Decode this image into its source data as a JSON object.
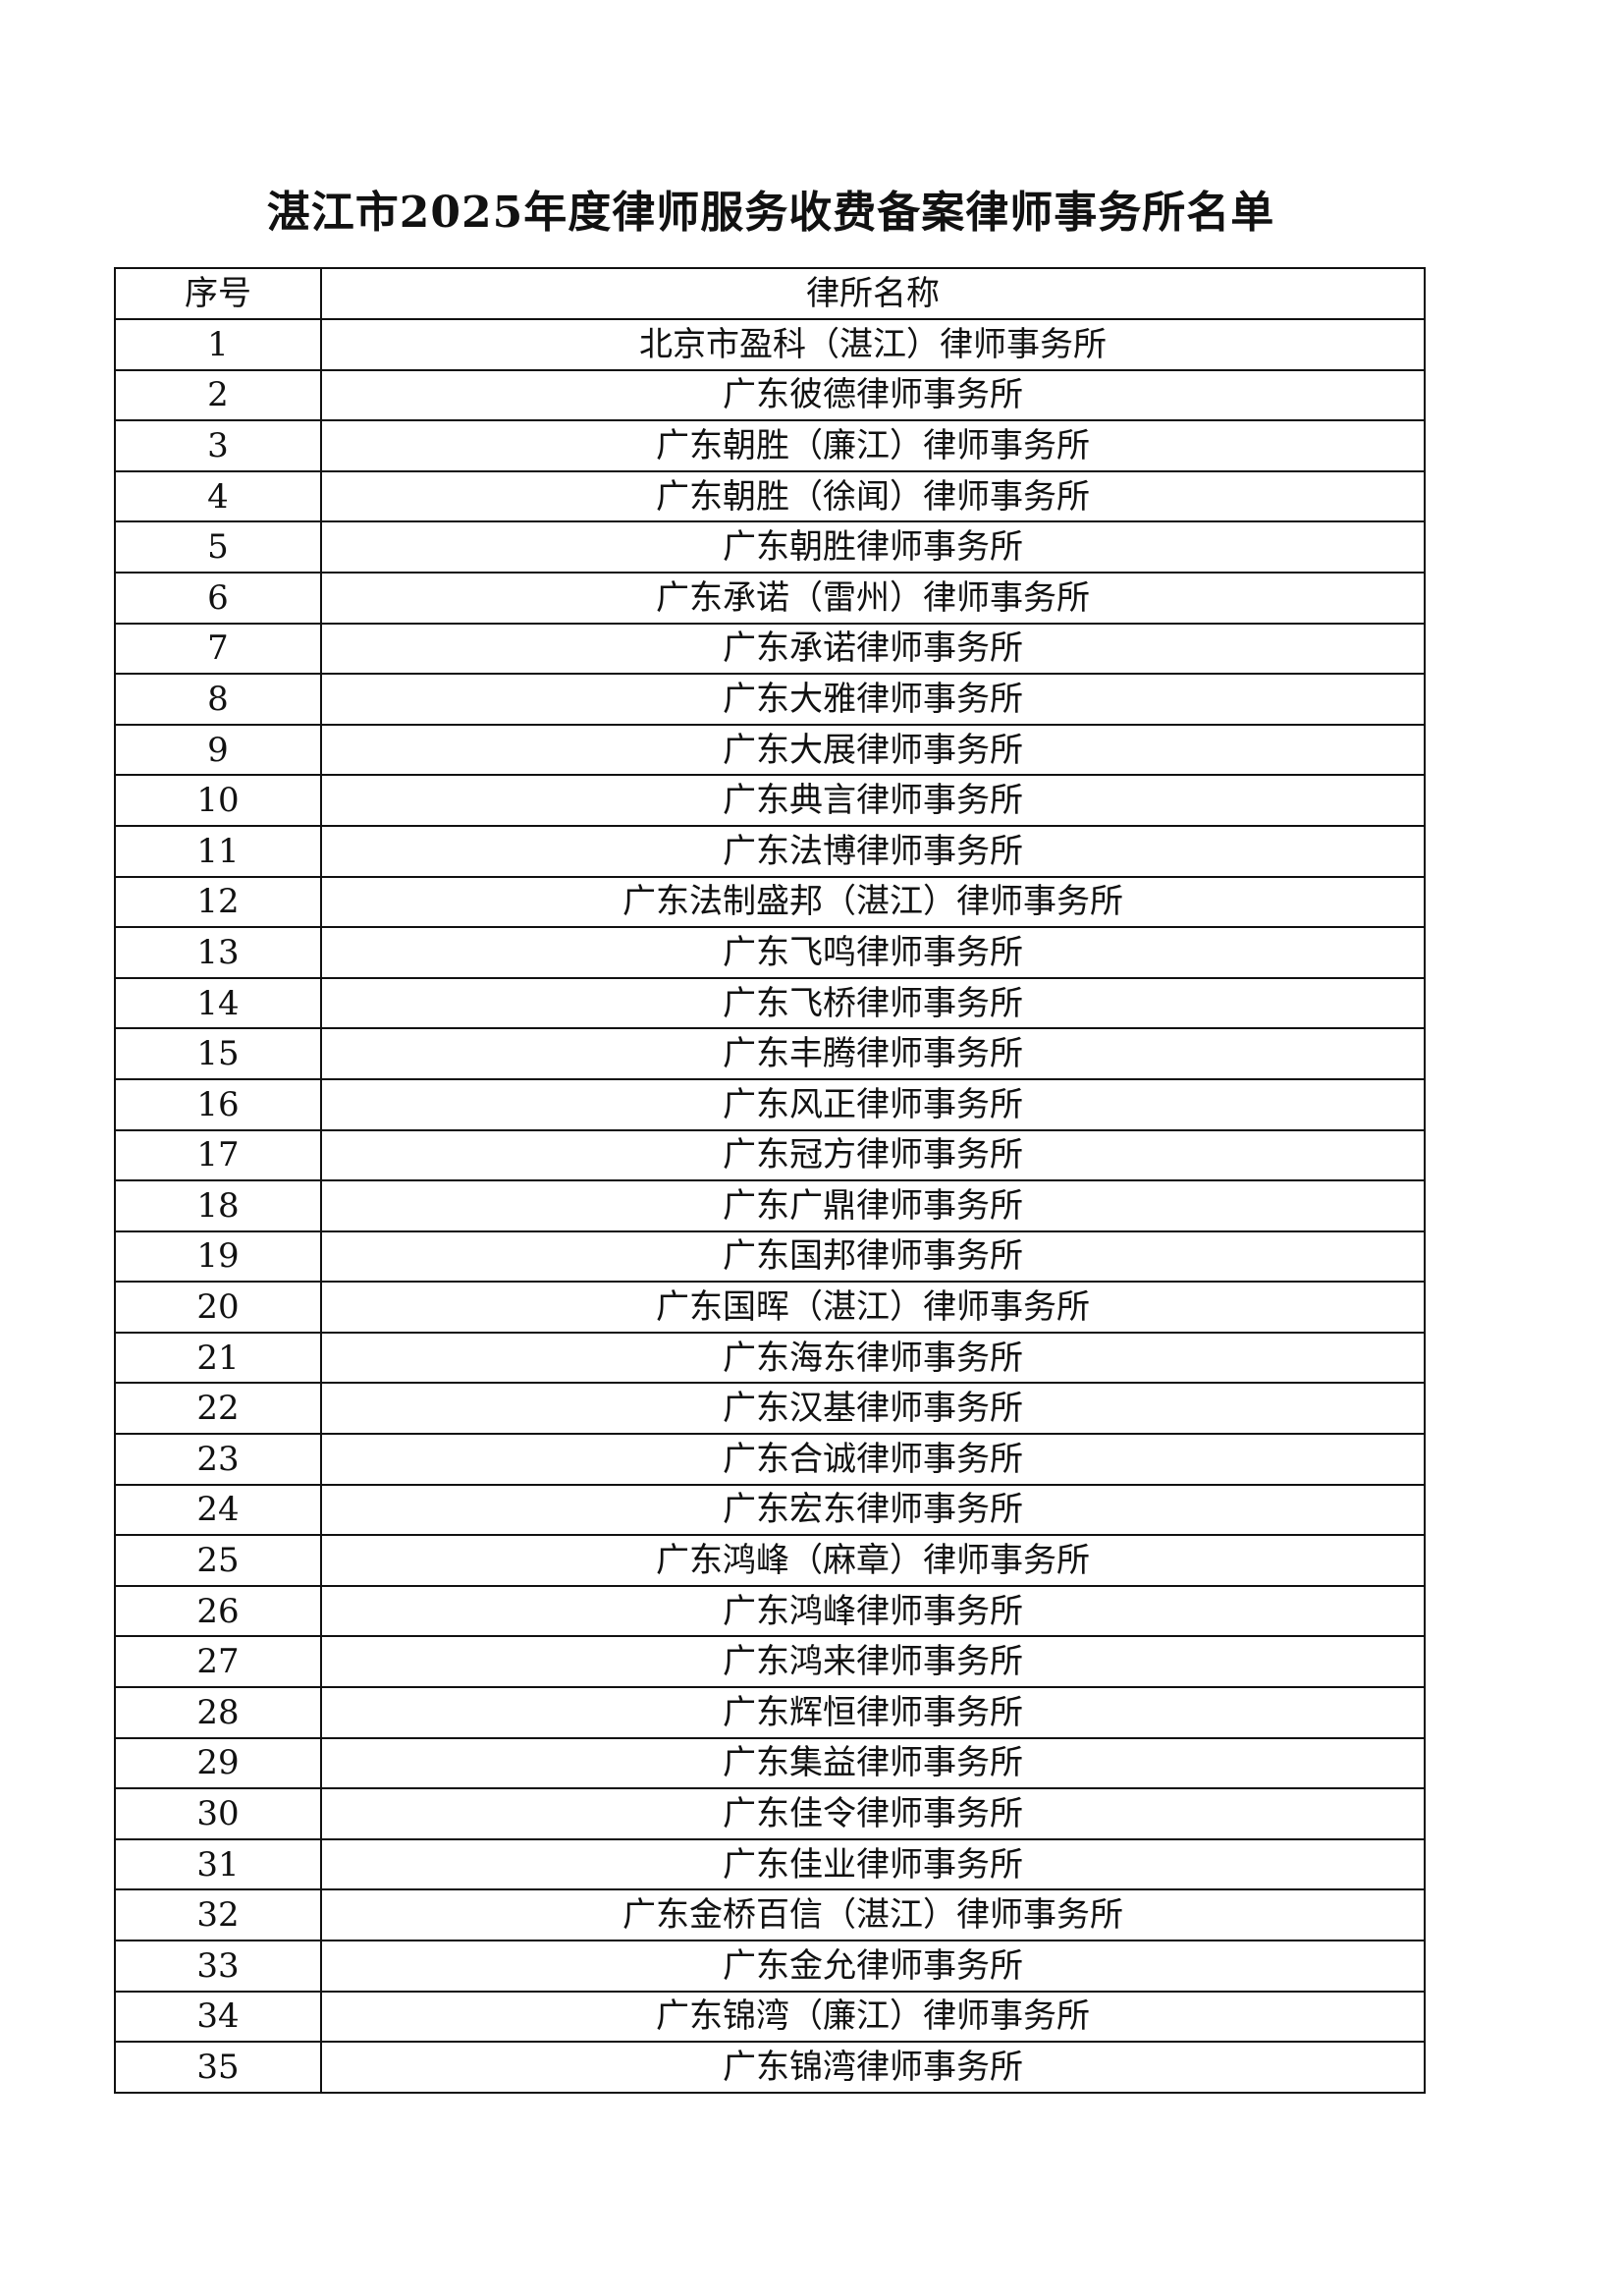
{
  "title": "湛江市2025年度律师服务收费备案律师事务所名单",
  "table": {
    "headers": [
      "序号",
      "律所名称"
    ],
    "rows": [
      [
        "1",
        "北京市盈科（湛江）律师事务所"
      ],
      [
        "2",
        "广东彼德律师事务所"
      ],
      [
        "3",
        "广东朝胜（廉江）律师事务所"
      ],
      [
        "4",
        "广东朝胜（徐闻）律师事务所"
      ],
      [
        "5",
        "广东朝胜律师事务所"
      ],
      [
        "6",
        "广东承诺（雷州）律师事务所"
      ],
      [
        "7",
        "广东承诺律师事务所"
      ],
      [
        "8",
        "广东大雅律师事务所"
      ],
      [
        "9",
        "广东大展律师事务所"
      ],
      [
        "10",
        "广东典言律师事务所"
      ],
      [
        "11",
        "广东法博律师事务所"
      ],
      [
        "12",
        "广东法制盛邦（湛江）律师事务所"
      ],
      [
        "13",
        "广东飞鸣律师事务所"
      ],
      [
        "14",
        "广东飞桥律师事务所"
      ],
      [
        "15",
        "广东丰腾律师事务所"
      ],
      [
        "16",
        "广东风正律师事务所"
      ],
      [
        "17",
        "广东冠方律师事务所"
      ],
      [
        "18",
        "广东广鼎律师事务所"
      ],
      [
        "19",
        "广东国邦律师事务所"
      ],
      [
        "20",
        "广东国晖（湛江）律师事务所"
      ],
      [
        "21",
        "广东海东律师事务所"
      ],
      [
        "22",
        "广东汉基律师事务所"
      ],
      [
        "23",
        "广东合诚律师事务所"
      ],
      [
        "24",
        "广东宏东律师事务所"
      ],
      [
        "25",
        "广东鸿峰（麻章）律师事务所"
      ],
      [
        "26",
        "广东鸿峰律师事务所"
      ],
      [
        "27",
        "广东鸿来律师事务所"
      ],
      [
        "28",
        "广东辉恒律师事务所"
      ],
      [
        "29",
        "广东集益律师事务所"
      ],
      [
        "30",
        "广东佳令律师事务所"
      ],
      [
        "31",
        "广东佳业律师事务所"
      ],
      [
        "32",
        "广东金桥百信（湛江）律师事务所"
      ],
      [
        "33",
        "广东金允律师事务所"
      ],
      [
        "34",
        "广东锦湾（廉江）律师事务所"
      ],
      [
        "35",
        "广东锦湾律师事务所"
      ]
    ]
  }
}
